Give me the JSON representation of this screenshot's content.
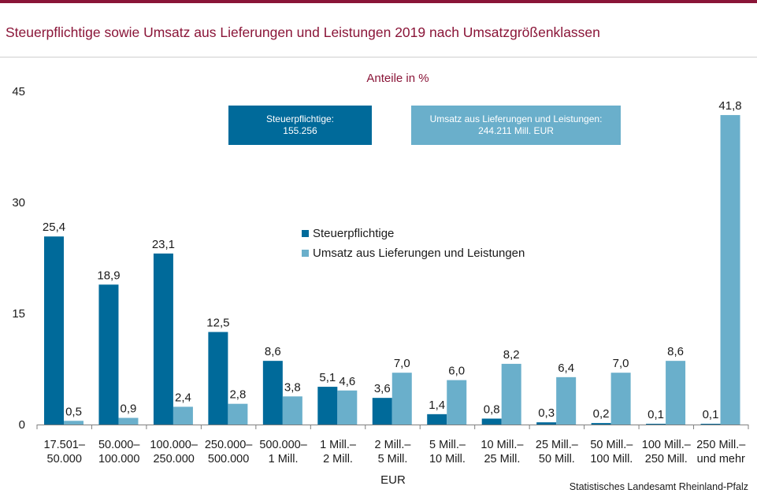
{
  "title": "Steuerpflichtige sowie Umsatz aus Lieferungen und Leistungen 2019 nach Umsatzgrößenklassen",
  "source": "Statistisches Landesamt Rheinland-Pfalz",
  "info_boxes": {
    "steuerpflichtige": {
      "line1": "Steuerpflichtige:",
      "line2": "155.256"
    },
    "umsatz": {
      "line1": "Umsatz aus Lieferungen  und Leistungen:",
      "line2": "244.211  Mill. EUR"
    }
  },
  "legend": [
    {
      "label": "Steuerpflichtige",
      "color": "#006a9a"
    },
    {
      "label": "Umsatz aus Lieferungen und Leistungen",
      "color": "#6aafcb"
    }
  ],
  "chart_data": {
    "type": "bar",
    "subtitle": "Anteile in %",
    "xlabel": "EUR",
    "ylabel": "",
    "ylim": [
      0,
      45
    ],
    "yticks": [
      0,
      15,
      30,
      45
    ],
    "grid": false,
    "legend_position": "center",
    "categories": [
      [
        "17.501–",
        "50.000"
      ],
      [
        "50.000–",
        "100.000"
      ],
      [
        "100.000–",
        "250.000"
      ],
      [
        "250.000–",
        "500.000"
      ],
      [
        "500.000–",
        "1 Mill."
      ],
      [
        "1 Mill.–",
        "2 Mill."
      ],
      [
        "2 Mill.–",
        "5 Mill."
      ],
      [
        "5 Mill.–",
        "10 Mill."
      ],
      [
        "10 Mill.–",
        "25 Mill."
      ],
      [
        "25 Mill.–",
        "50 Mill."
      ],
      [
        "50 Mill.–",
        "100 Mill."
      ],
      [
        "100 Mill.–",
        "250 Mill."
      ],
      [
        "250 Mill.–",
        "und mehr"
      ]
    ],
    "series": [
      {
        "name": "Steuerpflichtige",
        "color": "#006a9a",
        "values": [
          25.4,
          18.9,
          23.1,
          12.5,
          8.6,
          5.1,
          3.6,
          1.4,
          0.8,
          0.3,
          0.2,
          0.1,
          0.1
        ],
        "labels": [
          "25,4",
          "18,9",
          "23,1",
          "12,5",
          "8,6",
          "5,1",
          "3,6",
          "1,4",
          "0,8",
          "0,3",
          "0,2",
          "0,1",
          "0,1"
        ]
      },
      {
        "name": "Umsatz aus Lieferungen und Leistungen",
        "color": "#6aafcb",
        "values": [
          0.5,
          0.9,
          2.4,
          2.8,
          3.8,
          4.6,
          7.0,
          6.0,
          8.2,
          6.4,
          7.0,
          8.6,
          41.8
        ],
        "labels": [
          "0,5",
          "0,9",
          "2,4",
          "2,8",
          "3,8",
          "4,6",
          "7,0",
          "6,0",
          "8,2",
          "6,4",
          "7,0",
          "8,6",
          "41,8"
        ]
      }
    ]
  }
}
